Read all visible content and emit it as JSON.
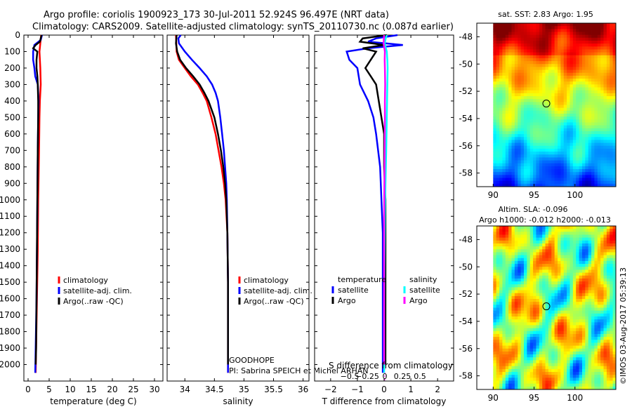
{
  "header": {
    "line1": "Argo profile: coriolis 1900923_173 30-Jul-2011 52.924S 96.497E (NRT data)",
    "line2": "Climatology: CARS2009. Satellite-adjusted climatology: synTS_20110730.nc (0.087d earlier)"
  },
  "colors": {
    "climatology": "#ff0000",
    "satellite": "#0000ff",
    "argo": "#000000",
    "sal_satellite": "#00ffff",
    "sal_argo": "#ff00ff"
  },
  "chart_data": [
    {
      "id": "temp",
      "type": "line",
      "xlabel": "temperature (deg C)",
      "ylabel": "",
      "xlim": [
        -1,
        32
      ],
      "ylim": [
        2100,
        0
      ],
      "xticks": [
        0,
        5,
        10,
        15,
        20,
        25,
        30
      ],
      "xtick_labels": [
        "0",
        "5",
        "10",
        "15",
        "20",
        "25",
        "30"
      ],
      "yticks": [
        0,
        100,
        200,
        300,
        400,
        500,
        600,
        700,
        800,
        900,
        1000,
        1100,
        1200,
        1300,
        1400,
        1500,
        1600,
        1700,
        1800,
        1900,
        2000
      ],
      "ytick_labels": [
        "0",
        "100",
        "200",
        "300",
        "400",
        "500",
        "600",
        "700",
        "800",
        "900",
        "1000",
        "1100",
        "1200",
        "1300",
        "1400",
        "1500",
        "1600",
        "1700",
        "1800",
        "1900",
        "2000"
      ],
      "legend": {
        "position": "center-left",
        "entries": [
          "climatology",
          "satellite-adj. clim.",
          "Argo(..raw -QC)"
        ]
      },
      "series": [
        {
          "name": "climatology",
          "color": "#ff0000",
          "depth": [
            0,
            50,
            100,
            200,
            300,
            400,
            500,
            700,
            1000,
            1300,
            1600,
            1900,
            2050
          ],
          "values": [
            3.1,
            2.9,
            2.7,
            2.9,
            3.0,
            2.8,
            2.7,
            2.6,
            2.4,
            2.3,
            2.1,
            1.9,
            1.8
          ]
        },
        {
          "name": "satellite-adj. clim.",
          "color": "#0000ff",
          "depth": [
            0,
            30,
            60,
            100,
            150,
            200,
            250,
            300,
            400,
            500,
            700,
            1000,
            1300,
            1600,
            1900,
            2050
          ],
          "values": [
            3.3,
            3.0,
            1.5,
            1.2,
            1.2,
            1.5,
            1.7,
            2.3,
            2.5,
            2.4,
            2.3,
            2.2,
            2.1,
            2.0,
            1.8,
            1.7
          ]
        },
        {
          "name": "Argo(..raw -QC)",
          "color": "#000000",
          "depth": [
            0,
            20,
            40,
            60,
            80,
            100,
            150,
            200,
            250,
            300,
            400,
            500,
            700,
            1000,
            1300,
            1600,
            1900,
            2000
          ],
          "values": [
            3.2,
            3.0,
            2.8,
            1.8,
            1.2,
            2.2,
            2.0,
            2.0,
            2.2,
            2.3,
            2.4,
            2.4,
            2.3,
            2.2,
            2.1,
            2.0,
            1.9,
            1.8
          ]
        }
      ]
    },
    {
      "id": "sal",
      "type": "line",
      "xlabel": "salinity",
      "ylabel": "",
      "xlim": [
        33.7,
        36.1
      ],
      "ylim": [
        2100,
        0
      ],
      "xticks": [
        34,
        34.5,
        35,
        35.5,
        36
      ],
      "xtick_labels": [
        "34",
        "34.5",
        "35",
        "35.5",
        "36"
      ],
      "legend": {
        "position": "center-right",
        "entries": [
          "climatology",
          "satellite-adj. clim.",
          "Argo(..raw -QC)"
        ]
      },
      "annotation": [
        "GOODHOPE",
        "PI: Sabrina SPEICH et Michel ARHAN"
      ],
      "series": [
        {
          "name": "climatology",
          "color": "#ff0000",
          "depth": [
            0,
            100,
            150,
            200,
            250,
            300,
            350,
            400,
            500,
            600,
            700,
            800,
            900,
            1000,
            1200,
            1500,
            1800,
            2050
          ],
          "values": [
            33.85,
            33.86,
            33.9,
            34.0,
            34.1,
            34.22,
            34.3,
            34.37,
            34.45,
            34.52,
            34.57,
            34.62,
            34.66,
            34.69,
            34.72,
            34.73,
            34.73,
            34.73
          ]
        },
        {
          "name": "satellite-adj. clim.",
          "color": "#0000ff",
          "depth": [
            0,
            20,
            50,
            100,
            150,
            200,
            250,
            300,
            350,
            400,
            500,
            600,
            700,
            800,
            900,
            1000,
            1200,
            1500,
            1800,
            2050
          ],
          "values": [
            33.93,
            33.89,
            33.9,
            34.0,
            34.12,
            34.25,
            34.37,
            34.46,
            34.52,
            34.56,
            34.6,
            34.63,
            34.66,
            34.68,
            34.7,
            34.71,
            34.72,
            34.73,
            34.73,
            34.73
          ]
        },
        {
          "name": "Argo(..raw -QC)",
          "color": "#000000",
          "depth": [
            0,
            50,
            100,
            150,
            200,
            250,
            300,
            350,
            400,
            500,
            600,
            700,
            800,
            900,
            1000,
            1200,
            1500,
            1800,
            2000
          ],
          "values": [
            33.86,
            33.85,
            33.87,
            33.92,
            34.02,
            34.14,
            34.25,
            34.33,
            34.4,
            34.5,
            34.56,
            34.61,
            34.65,
            34.68,
            34.7,
            34.72,
            34.73,
            34.73,
            34.73
          ]
        }
      ]
    },
    {
      "id": "diff",
      "type": "line",
      "xlabel": "T difference from climatology",
      "xlabel_top": "S difference from climatology",
      "xlim": [
        -2.6,
        2.6
      ],
      "ylim": [
        2100,
        0
      ],
      "xticks": [
        -2,
        -1,
        0,
        1,
        2
      ],
      "xtick_labels": [
        "−2",
        "−1",
        "0",
        "1",
        "2"
      ],
      "sticks": [
        -0.5,
        -0.25,
        0,
        0.25,
        0.5
      ],
      "stick_labels": [
        "−0.5",
        "−0.25",
        "0",
        "0.25",
        "0.5"
      ],
      "legend": {
        "position": "center",
        "title_t": "temperature",
        "title_s": "salinity",
        "entries_t": [
          "satellite",
          "Argo"
        ],
        "entries_s": [
          "satellite",
          "Argo"
        ]
      },
      "series": [
        {
          "name": "satellite",
          "quantity": "temperature",
          "color": "#0000ff",
          "depth": [
            0,
            20,
            40,
            60,
            80,
            100,
            150,
            200,
            300,
            400,
            500,
            600,
            800,
            1000,
            1200,
            1500,
            1800,
            2050
          ],
          "values": [
            0.5,
            -0.3,
            -0.6,
            0.7,
            -0.6,
            -1.4,
            -1.3,
            -1.0,
            -0.9,
            -0.6,
            -0.4,
            -0.3,
            -0.15,
            -0.1,
            -0.05,
            -0.05,
            -0.05,
            -0.05
          ]
        },
        {
          "name": "Argo",
          "quantity": "temperature",
          "color": "#000000",
          "depth": [
            0,
            20,
            40,
            60,
            80,
            100,
            150,
            200,
            250,
            300,
            400,
            500,
            600,
            800,
            1000,
            1200,
            1500,
            1800,
            2000
          ],
          "values": [
            0.1,
            -0.8,
            -0.9,
            0.0,
            -0.8,
            -0.3,
            -0.5,
            -0.7,
            -0.5,
            -0.3,
            -0.2,
            -0.1,
            0.0,
            0.0,
            0.05,
            0.05,
            0.05,
            0.05,
            0.05
          ]
        },
        {
          "name": "satellite",
          "quantity": "salinity",
          "color": "#00ffff",
          "depth": [
            0,
            20,
            50,
            100,
            150,
            200,
            300,
            400,
            500,
            700,
            900,
            1100,
            1400,
            1700,
            2050
          ],
          "values": [
            0.1,
            0.06,
            0.02,
            0.1,
            0.12,
            0.13,
            0.12,
            0.11,
            0.1,
            0.08,
            0.05,
            0.03,
            0.01,
            0.0,
            0.0
          ]
        },
        {
          "name": "Argo",
          "quantity": "salinity",
          "color": "#ff00ff",
          "depth": [
            0,
            50,
            100,
            150,
            200,
            300,
            400,
            500,
            700,
            900,
            1100,
            1400,
            1700,
            2000
          ],
          "values": [
            0.0,
            -0.02,
            0.03,
            0.02,
            0.03,
            0.04,
            0.03,
            0.03,
            0.02,
            0.01,
            0.0,
            0.0,
            0.0,
            0.0
          ]
        }
      ]
    },
    {
      "id": "sst_map",
      "type": "heatmap",
      "title": "sat. SST: 2.83  Argo: 1.95",
      "xlim": [
        88,
        105
      ],
      "ylim": [
        -59,
        -47
      ],
      "xticks": [
        90,
        95,
        100
      ],
      "xtick_labels": [
        "90",
        "95",
        "100"
      ],
      "yticks": [
        -48,
        -50,
        -52,
        -54,
        -56,
        -58
      ],
      "ytick_labels": [
        "-48",
        "-50",
        "-52",
        "-54",
        "-56",
        "-58"
      ],
      "marker": {
        "lon": 96.5,
        "lat": -52.9
      }
    },
    {
      "id": "sla_map",
      "type": "heatmap",
      "title": "Altim. SLA: -0.096",
      "subtitle": "Argo h1000: -0.012  h2000: -0.013",
      "xlim": [
        88,
        105
      ],
      "ylim": [
        -59,
        -47
      ],
      "xticks": [
        90,
        95,
        100
      ],
      "xtick_labels": [
        "90",
        "95",
        "100"
      ],
      "yticks": [
        -48,
        -50,
        -52,
        -54,
        -56,
        -58
      ],
      "ytick_labels": [
        "-48",
        "-50",
        "-52",
        "-54",
        "-56",
        "-58"
      ],
      "marker": {
        "lon": 96.5,
        "lat": -52.9
      }
    }
  ],
  "footer": {
    "watermark": "©IMOS 03-Aug-2017 05:39:13"
  }
}
